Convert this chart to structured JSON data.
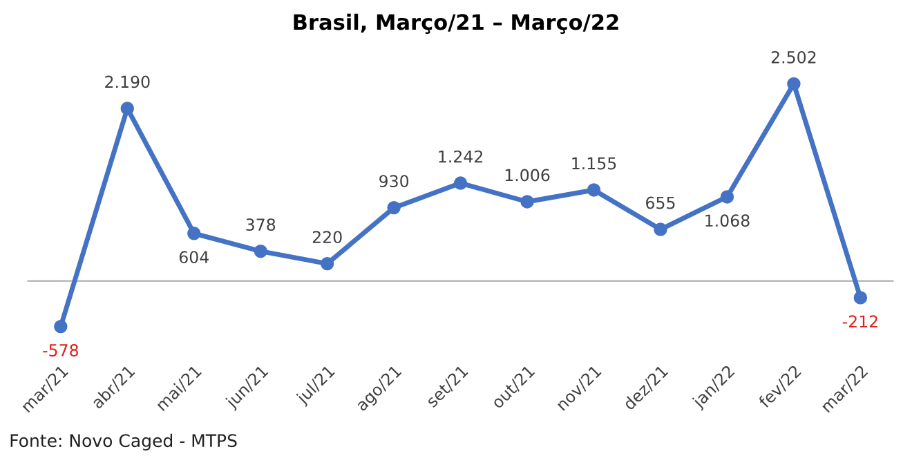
{
  "chart_data": {
    "type": "line",
    "title": "Brasil, Março/21 – Março/22",
    "categories": [
      "mar/21",
      "abr/21",
      "mai/21",
      "jun/21",
      "jul/21",
      "ago/21",
      "set/21",
      "out/21",
      "nov/21",
      "dez/21",
      "jan/22",
      "fev/22",
      "mar/22"
    ],
    "series": [
      {
        "color": "#4472c4",
        "values": [
          -578,
          2190,
          604,
          378,
          220,
          930,
          1242,
          1006,
          1155,
          655,
          1068,
          2502,
          -212
        ],
        "value_labels": [
          "-578",
          "2.190",
          "604",
          "378",
          "220",
          "930",
          "1.242",
          "1.006",
          "1.155",
          "655",
          "1.068",
          "2.502",
          "-212"
        ]
      }
    ],
    "marker": "circle",
    "line_style": "solid",
    "grid": false,
    "annotations": [
      "Fonte: Novo Caged - MTPS"
    ]
  }
}
